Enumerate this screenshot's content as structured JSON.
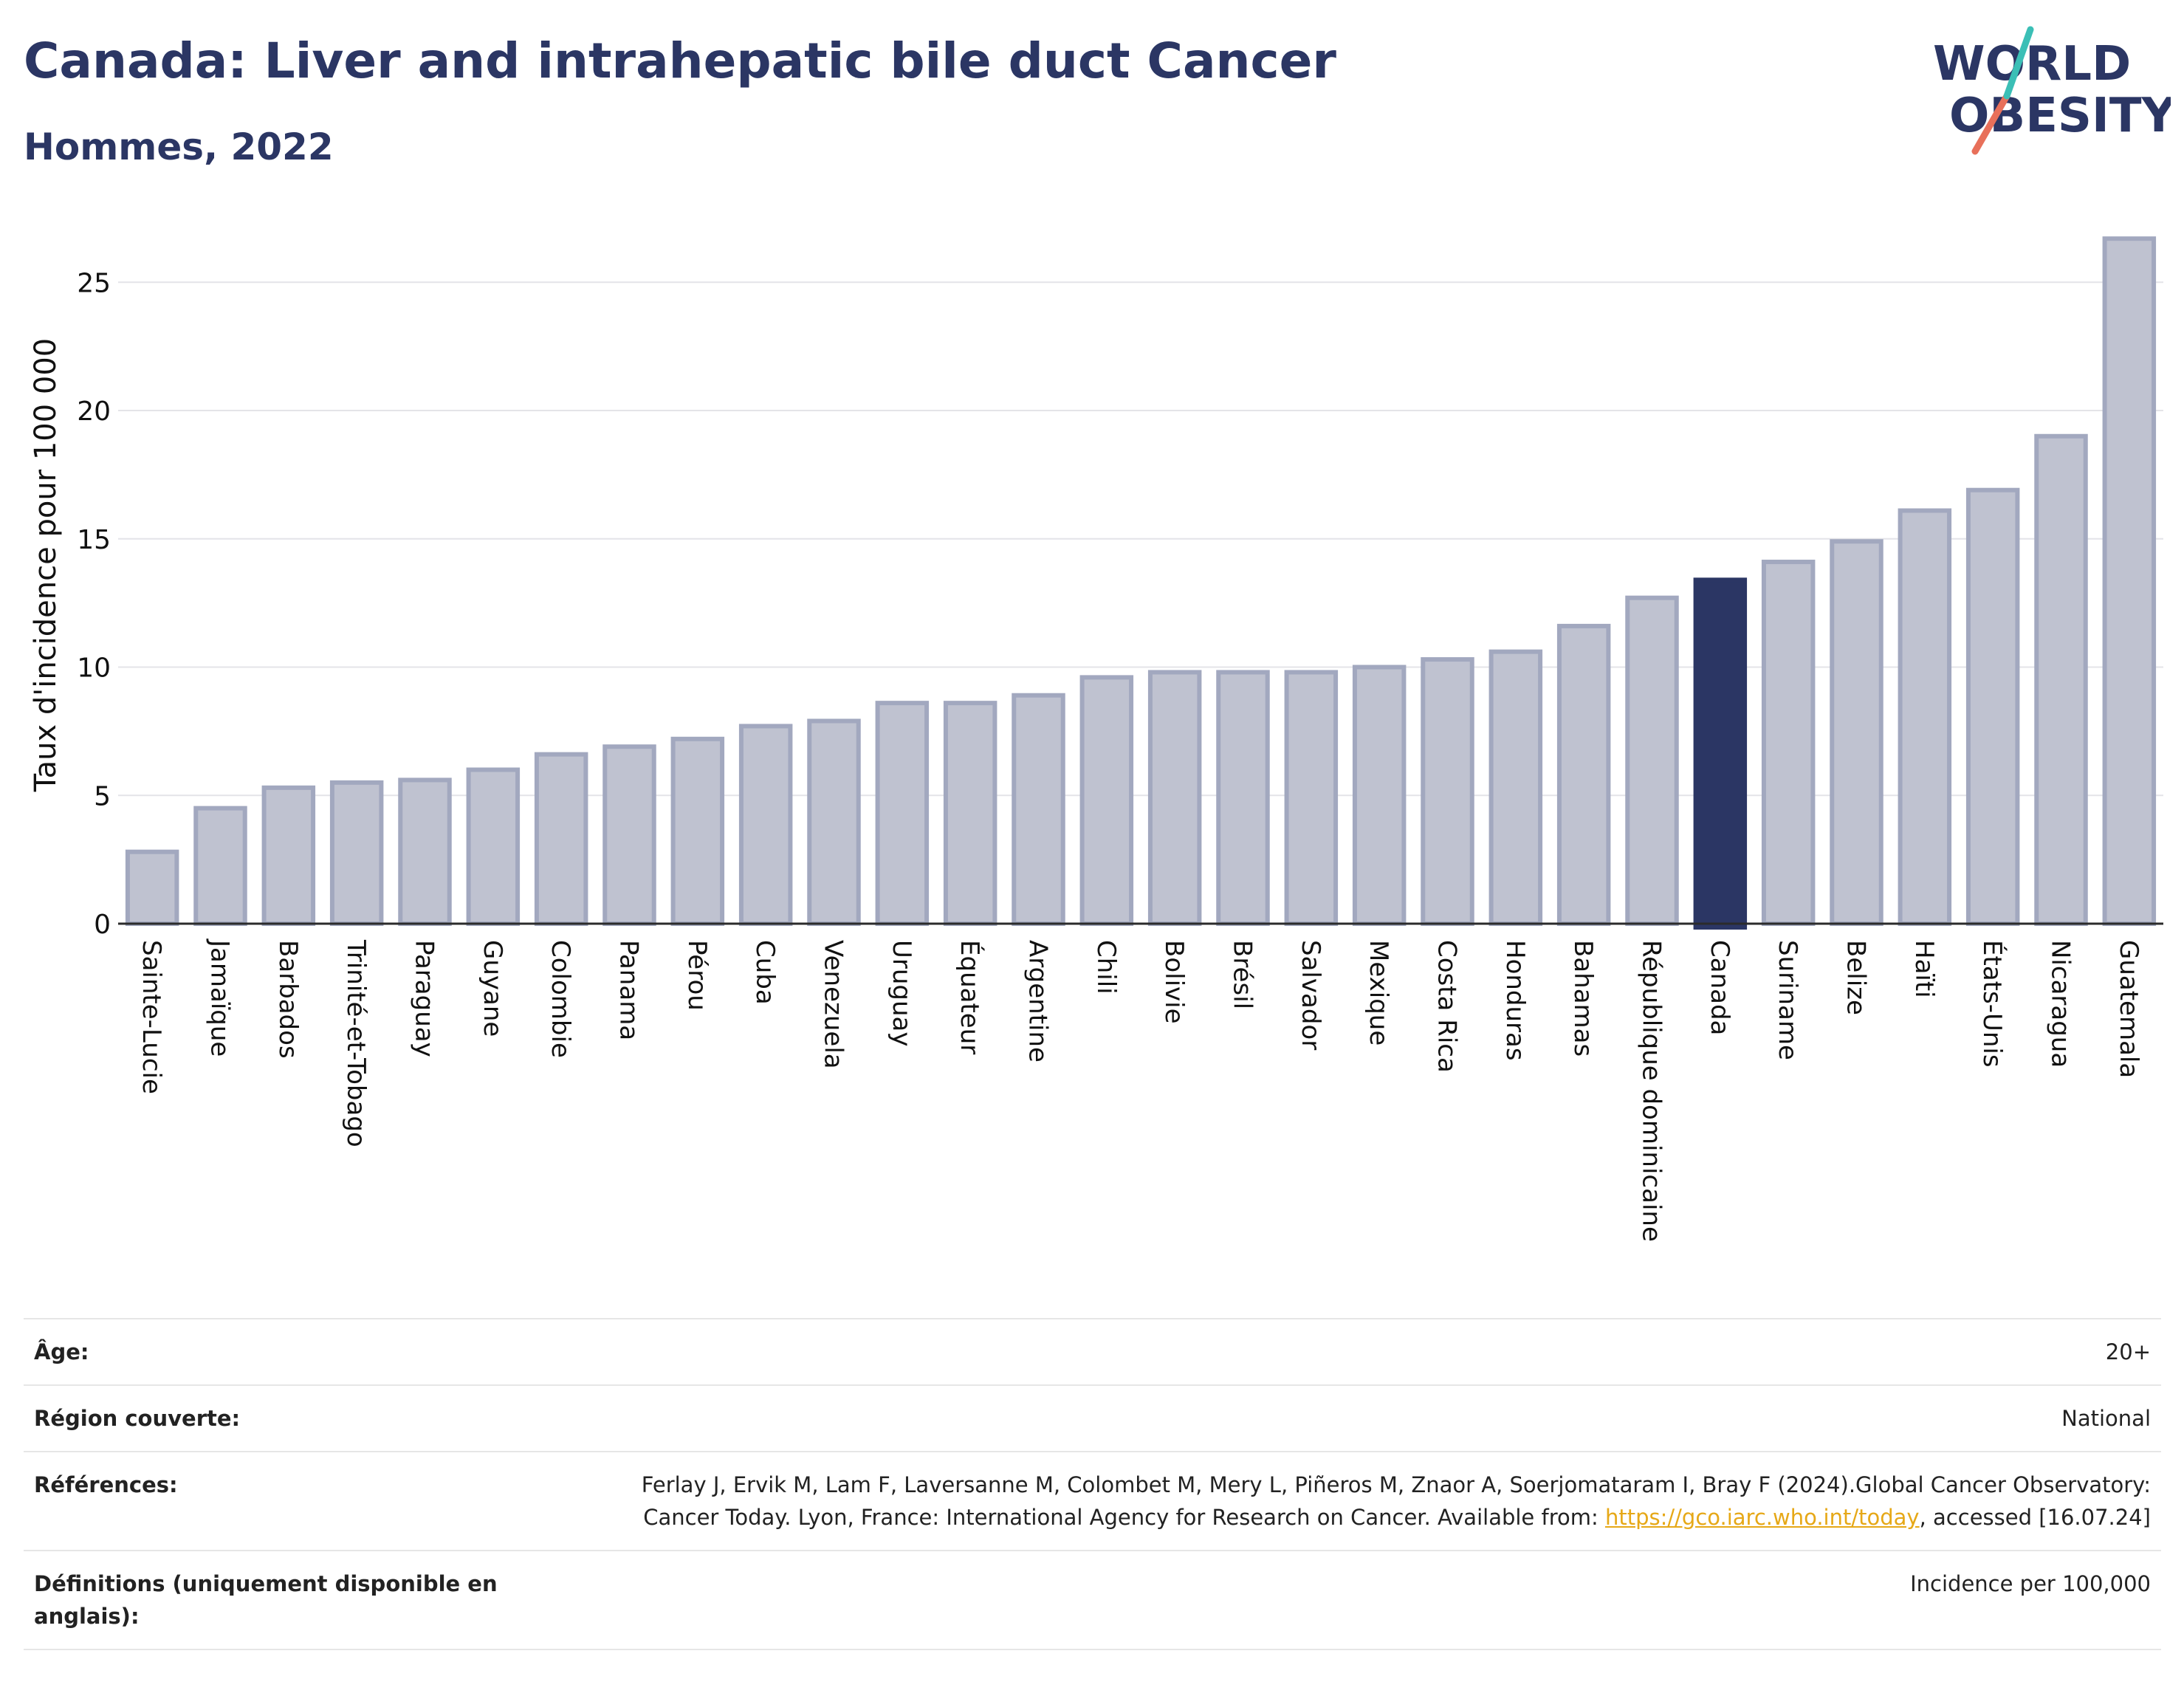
{
  "title": "Canada: Liver and intrahepatic bile duct Cancer",
  "subtitle": "Hommes, 2022",
  "logo": {
    "line1": "WORLD",
    "line2": "OBESITY"
  },
  "colors": {
    "bar": "#bfc2d0",
    "bar_border": "#a2a8bf",
    "highlight": "#2b3664",
    "title": "#2b3664"
  },
  "chart_data": {
    "type": "bar",
    "ylabel": "Taux d'incidence pour 100 000",
    "ylim": [
      0,
      27.5
    ],
    "yticks": [
      0,
      5,
      10,
      15,
      20,
      25
    ],
    "grid": true,
    "highlight": "Canada",
    "categories": [
      "Sainte-Lucie",
      "Jamaïque",
      "Barbados",
      "Trinité-et-Tobago",
      "Paraguay",
      "Guyane",
      "Colombie",
      "Panama",
      "Pérou",
      "Cuba",
      "Venezuela",
      "Uruguay",
      "Équateur",
      "Argentine",
      "Chili",
      "Bolivie",
      "Brésil",
      "Salvador",
      "Mexique",
      "Costa Rica",
      "Honduras",
      "Bahamas",
      "République dominicaine",
      "Canada",
      "Suriname",
      "Belize",
      "Haïti",
      "États-Unis",
      "Nicaragua",
      "Guatemala"
    ],
    "values": [
      2.8,
      4.5,
      5.3,
      5.5,
      5.6,
      6.0,
      6.6,
      6.9,
      7.2,
      7.7,
      7.9,
      8.6,
      8.6,
      8.9,
      9.6,
      9.8,
      9.8,
      9.8,
      10.0,
      10.3,
      10.6,
      11.6,
      12.7,
      13.4,
      14.1,
      14.9,
      16.1,
      16.9,
      19.0,
      26.7
    ]
  },
  "meta": [
    {
      "key": "Âge:",
      "value": "20+"
    },
    {
      "key": "Région couverte:",
      "value": "National"
    },
    {
      "key": "Références:",
      "value_pre": "Ferlay J, Ervik M, Lam F, Laversanne M, Colombet M, Mery L, Piñeros M, Znaor A, Soerjomataram I, Bray F (2024).Global Cancer Observatory: Cancer Today. Lyon, France: International Agency for Research on Cancer. Available from: ",
      "link": "https://gco.iarc.who.int/today",
      "value_post": ", accessed [16.07.24]"
    },
    {
      "key": "Définitions (uniquement disponible en anglais):",
      "value": "Incidence per 100,000"
    }
  ]
}
